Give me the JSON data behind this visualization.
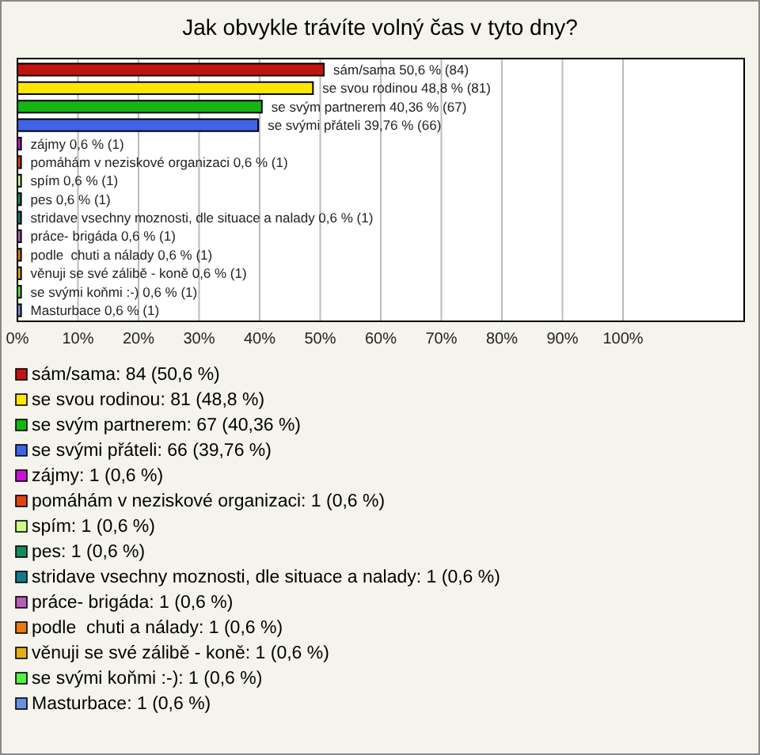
{
  "chart_data": {
    "type": "bar",
    "orientation": "horizontal",
    "title": "Jak obvykle trávíte volný čas v tyto dny?",
    "categories": [
      "sám/sama",
      "se svou rodinou",
      "se svým partnerem",
      "se svými přáteli",
      "zájmy",
      "pomáhám v neziskové organizaci",
      "spím",
      "pes",
      "stridave vsechny moznosti, dle situace a nalady",
      "práce- brigáda",
      "podle  chuti a nálady",
      "věnuji se své zálibě - koně",
      "se svými koňmi :-)",
      "Masturbace"
    ],
    "values": [
      50.6,
      48.8,
      40.36,
      39.76,
      0.6,
      0.6,
      0.6,
      0.6,
      0.6,
      0.6,
      0.6,
      0.6,
      0.6,
      0.6
    ],
    "value_labels": [
      "50,6 % (84)",
      "48,8 % (81)",
      "40,36 % (67)",
      "39,76 % (66)",
      "0,6 % (1)",
      "0,6 % (1)",
      "0,6 % (1)",
      "0,6 % (1)",
      "0,6 % (1)",
      "0,6 % (1)",
      "0,6 % (1)",
      "0,6 % (1)",
      "0,6 % (1)",
      "0,6 % (1)"
    ],
    "colors": [
      "#c0150f",
      "#ffe600",
      "#13b513",
      "#3f63e6",
      "#c812d6",
      "#e0430f",
      "#ccff88",
      "#138a5a",
      "#137a8a",
      "#b85cb8",
      "#e87a10",
      "#e6b010",
      "#55ee44",
      "#6a90e0"
    ],
    "xlim": [
      0,
      120
    ],
    "xticks": [
      {
        "value": 0,
        "label": "0%"
      },
      {
        "value": 10,
        "label": "10%"
      },
      {
        "value": 20,
        "label": "20%"
      },
      {
        "value": 30,
        "label": "30%"
      },
      {
        "value": 40,
        "label": "40%"
      },
      {
        "value": 50,
        "label": "50%"
      },
      {
        "value": 60,
        "label": "60%"
      },
      {
        "value": 70,
        "label": "70%"
      },
      {
        "value": 80,
        "label": "80%"
      },
      {
        "value": 90,
        "label": "90%"
      },
      {
        "value": 100,
        "label": "100%"
      }
    ],
    "grid": "x",
    "annotations": [
      "sám/sama: 84 (50,6 %)",
      "se svou rodinou: 81 (48,8 %)",
      "se svým partnerem: 67 (40,36 %)",
      "se svými přáteli: 66 (39,76 %)",
      "zájmy: 1 (0,6 %)",
      "pomáhám v neziskové organizaci: 1 (0,6 %)",
      "spím: 1 (0,6 %)",
      "pes: 1 (0,6 %)",
      "stridave vsechny moznosti, dle situace a nalady: 1 (0,6 %)",
      "práce- brigáda: 1 (0,6 %)",
      "podle  chuti a nálady: 1 (0,6 %)",
      "věnuji se své zálibě - koně: 1 (0,6 %)",
      "se svými koňmi :-): 1 (0,6 %)",
      "Masturbace: 1 (0,6 %)"
    ]
  }
}
